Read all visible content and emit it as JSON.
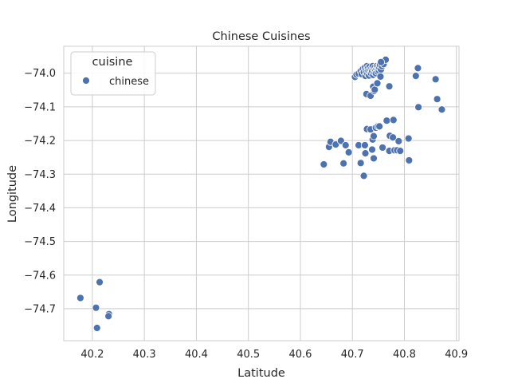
{
  "chart_data": {
    "type": "scatter",
    "title": "Chinese Cuisines",
    "xlabel": "Latitude",
    "ylabel": "Longitude",
    "xlim": [
      40.145,
      40.905
    ],
    "ylim": [
      -74.795,
      -73.92
    ],
    "xticks": [
      40.2,
      40.3,
      40.4,
      40.5,
      40.6,
      40.7,
      40.8,
      40.9
    ],
    "xtick_labels": [
      "40.2",
      "40.3",
      "40.4",
      "40.5",
      "40.6",
      "40.7",
      "40.8",
      "40.9"
    ],
    "yticks": [
      -74.0,
      -74.1,
      -74.2,
      -74.3,
      -74.4,
      -74.5,
      -74.6,
      -74.7
    ],
    "ytick_labels": [
      "−74.0",
      "−74.1",
      "−74.2",
      "−74.3",
      "−74.4",
      "−74.5",
      "−74.6",
      "−74.7"
    ],
    "grid": true,
    "legend_position": "top-left",
    "legend_title": "cuisine",
    "color": "#4c72b0",
    "series": [
      {
        "name": "chinese",
        "points": [
          [
            40.177,
            -74.668
          ],
          [
            40.207,
            -74.697
          ],
          [
            40.214,
            -74.621
          ],
          [
            40.209,
            -74.757
          ],
          [
            40.232,
            -74.716
          ],
          [
            40.231,
            -74.722
          ],
          [
            40.645,
            -74.271
          ],
          [
            40.655,
            -74.219
          ],
          [
            40.658,
            -74.204
          ],
          [
            40.668,
            -74.212
          ],
          [
            40.678,
            -74.201
          ],
          [
            40.683,
            -74.268
          ],
          [
            40.687,
            -74.214
          ],
          [
            40.693,
            -74.235
          ],
          [
            40.712,
            -74.214
          ],
          [
            40.716,
            -74.267
          ],
          [
            40.722,
            -74.305
          ],
          [
            40.724,
            -74.214
          ],
          [
            40.725,
            -74.238
          ],
          [
            40.728,
            -74.166
          ],
          [
            40.735,
            -74.167
          ],
          [
            40.738,
            -74.227
          ],
          [
            40.739,
            -74.197
          ],
          [
            40.741,
            -74.187
          ],
          [
            40.741,
            -74.253
          ],
          [
            40.745,
            -74.162
          ],
          [
            40.749,
            -74.158
          ],
          [
            40.752,
            -74.158
          ],
          [
            40.758,
            -74.221
          ],
          [
            40.766,
            -74.141
          ],
          [
            40.771,
            -74.231
          ],
          [
            40.772,
            -74.186
          ],
          [
            40.778,
            -74.191
          ],
          [
            40.779,
            -74.139
          ],
          [
            40.781,
            -74.229
          ],
          [
            40.786,
            -74.229
          ],
          [
            40.789,
            -74.202
          ],
          [
            40.792,
            -74.231
          ],
          [
            40.808,
            -74.194
          ],
          [
            40.809,
            -74.259
          ],
          [
            40.705,
            -74.011
          ],
          [
            40.708,
            -74.004
          ],
          [
            40.712,
            -74.001
          ],
          [
            40.716,
            -73.994
          ],
          [
            40.718,
            -74.003
          ],
          [
            40.72,
            -73.988
          ],
          [
            40.722,
            -73.997
          ],
          [
            40.724,
            -73.983
          ],
          [
            40.725,
            -74.008
          ],
          [
            40.726,
            -73.991
          ],
          [
            40.727,
            -73.998
          ],
          [
            40.728,
            -73.979
          ],
          [
            40.729,
            -74.002
          ],
          [
            40.73,
            -73.985
          ],
          [
            40.731,
            -73.993
          ],
          [
            40.732,
            -74.007
          ],
          [
            40.733,
            -73.981
          ],
          [
            40.734,
            -73.996
          ],
          [
            40.735,
            -73.989
          ],
          [
            40.736,
            -74.001
          ],
          [
            40.737,
            -73.985
          ],
          [
            40.738,
            -73.994
          ],
          [
            40.739,
            -73.979
          ],
          [
            40.74,
            -74.005
          ],
          [
            40.741,
            -73.988
          ],
          [
            40.742,
            -73.997
          ],
          [
            40.743,
            -73.983
          ],
          [
            40.744,
            -73.992
          ],
          [
            40.745,
            -74.0
          ],
          [
            40.746,
            -73.986
          ],
          [
            40.747,
            -73.979
          ],
          [
            40.748,
            -73.995
          ],
          [
            40.749,
            -73.987
          ],
          [
            40.75,
            -73.981
          ],
          [
            40.751,
            -73.992
          ],
          [
            40.752,
            -73.984
          ],
          [
            40.753,
            -73.975
          ],
          [
            40.755,
            -73.989
          ],
          [
            40.757,
            -73.979
          ],
          [
            40.76,
            -73.973
          ],
          [
            40.764,
            -73.96
          ],
          [
            40.755,
            -73.967
          ],
          [
            40.727,
            -74.062
          ],
          [
            40.735,
            -74.067
          ],
          [
            40.74,
            -74.04
          ],
          [
            40.742,
            -74.053
          ],
          [
            40.743,
            -74.049
          ],
          [
            40.748,
            -74.03
          ],
          [
            40.754,
            -74.01
          ],
          [
            40.771,
            -74.039
          ],
          [
            40.822,
            -74.008
          ],
          [
            40.826,
            -73.985
          ],
          [
            40.827,
            -74.101
          ],
          [
            40.86,
            -74.018
          ],
          [
            40.863,
            -74.077
          ],
          [
            40.872,
            -74.108
          ]
        ]
      }
    ]
  }
}
